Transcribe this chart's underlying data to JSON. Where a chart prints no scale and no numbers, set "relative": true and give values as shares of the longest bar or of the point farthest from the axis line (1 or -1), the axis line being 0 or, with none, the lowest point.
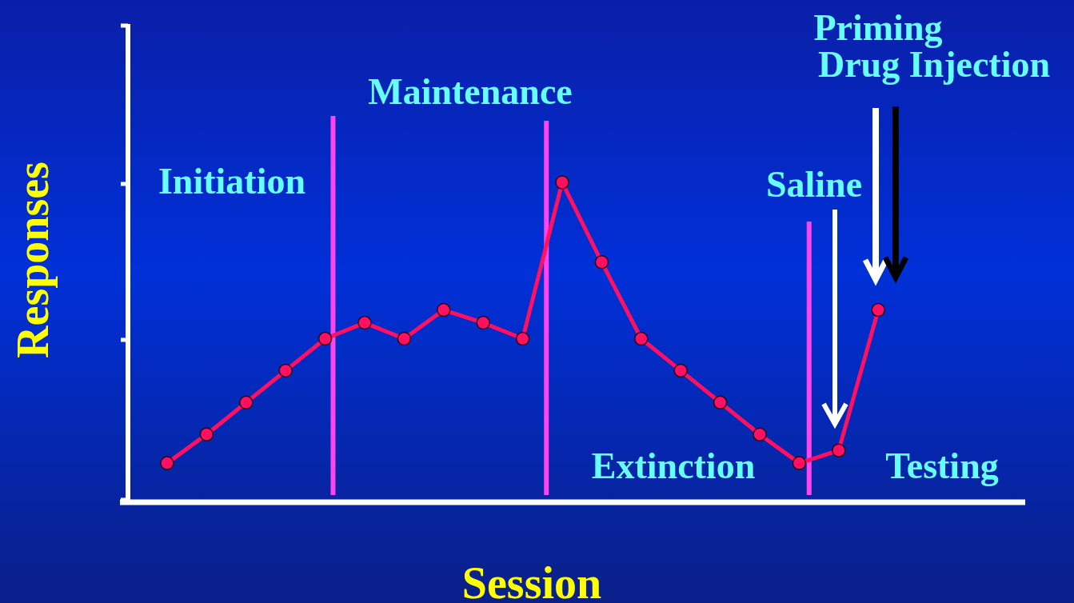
{
  "chart_data": {
    "type": "line",
    "relative": true,
    "xlabel": "Session",
    "ylabel": "Responses",
    "categories": [
      null,
      null,
      null,
      null,
      null,
      null,
      null,
      null,
      null,
      null,
      null,
      null,
      null,
      null,
      null,
      null,
      null,
      null,
      null
    ],
    "series": [
      {
        "color": "#ff1060",
        "values": [
          0.12,
          0.21,
          0.31,
          0.41,
          0.51,
          0.56,
          0.51,
          0.6,
          0.56,
          0.51,
          1,
          0.75,
          0.51,
          0.41,
          0.31,
          0.21,
          0.12,
          0.16,
          0.6
        ]
      }
    ],
    "marker": "circle",
    "line_style": "solid",
    "annotations": [
      "Initiation",
      "Maintenance",
      "Extinction",
      "Testing",
      "Saline",
      "Priming Drug Injection"
    ]
  }
}
